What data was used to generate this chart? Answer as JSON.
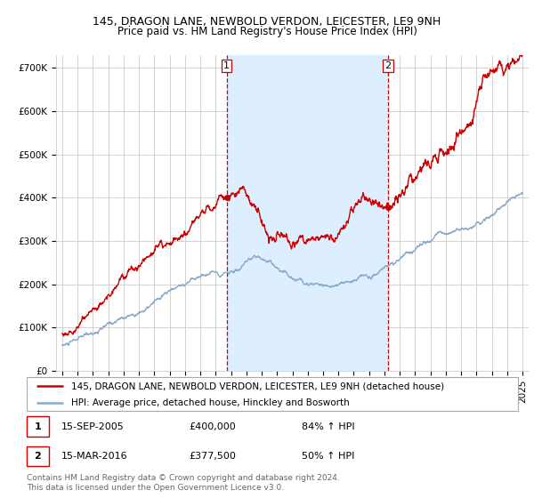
{
  "title": "145, DRAGON LANE, NEWBOLD VERDON, LEICESTER, LE9 9NH",
  "subtitle": "Price paid vs. HM Land Registry's House Price Index (HPI)",
  "ylim": [
    0,
    730000
  ],
  "yticks": [
    0,
    100000,
    200000,
    300000,
    400000,
    500000,
    600000,
    700000
  ],
  "ytick_labels": [
    "£0",
    "£100K",
    "£200K",
    "£300K",
    "£400K",
    "£500K",
    "£600K",
    "£700K"
  ],
  "xlim_start": 1994.6,
  "xlim_end": 2025.4,
  "background_color": "#ffffff",
  "grid_color": "#cccccc",
  "shade_color": "#ddeeff",
  "red_line_color": "#cc0000",
  "blue_line_color": "#88aacc",
  "dashed_line_color": "#cc0000",
  "sale1_x": 2005.708,
  "sale1_y": 400000,
  "sale2_x": 2016.208,
  "sale2_y": 377500,
  "legend_entry1": "145, DRAGON LANE, NEWBOLD VERDON, LEICESTER, LE9 9NH (detached house)",
  "legend_entry2": "HPI: Average price, detached house, Hinckley and Bosworth",
  "annot1_date": "15-SEP-2005",
  "annot1_price": "£400,000",
  "annot1_hpi": "84% ↑ HPI",
  "annot2_date": "15-MAR-2016",
  "annot2_price": "£377,500",
  "annot2_hpi": "50% ↑ HPI",
  "footer": "Contains HM Land Registry data © Crown copyright and database right 2024.\nThis data is licensed under the Open Government Licence v3.0.",
  "title_fontsize": 9,
  "subtitle_fontsize": 8.5,
  "tick_fontsize": 7.5,
  "legend_fontsize": 7.5,
  "annot_fontsize": 8,
  "footer_fontsize": 6.5
}
